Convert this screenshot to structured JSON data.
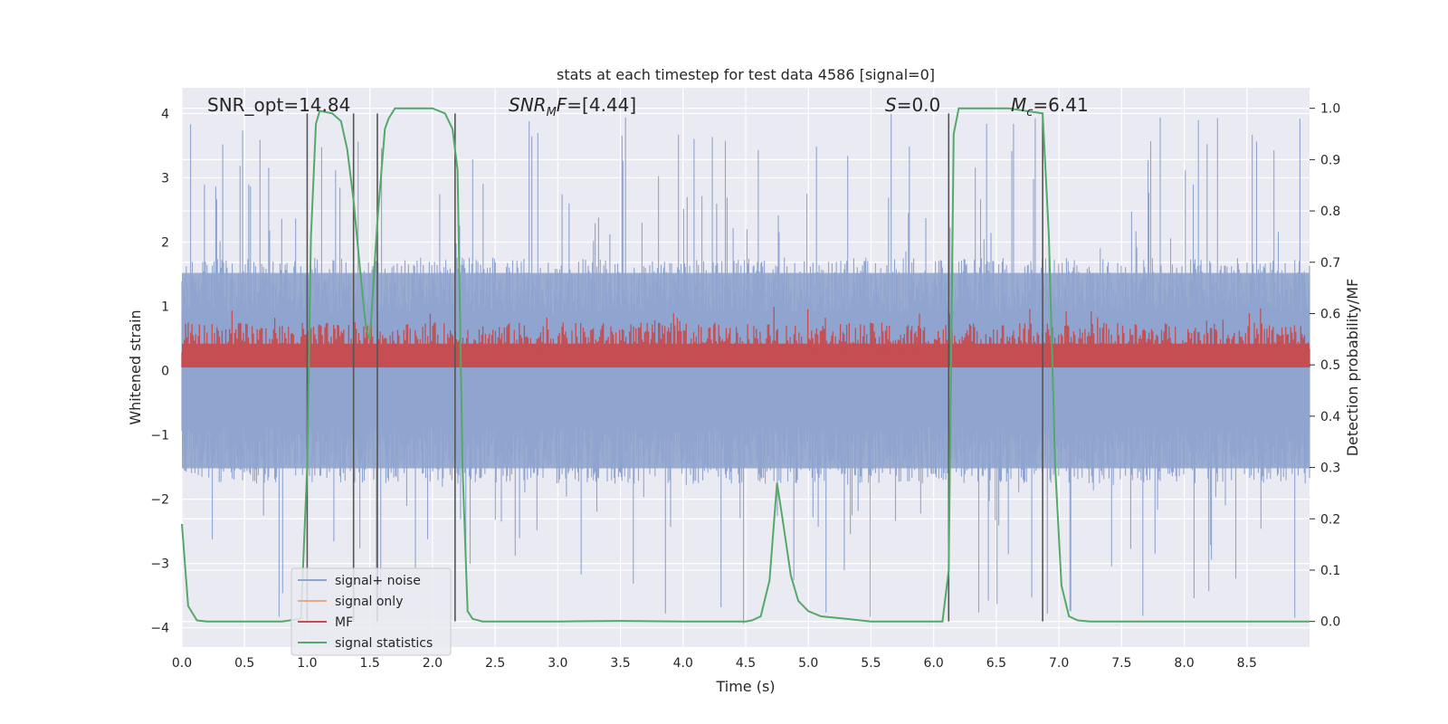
{
  "chart_data": {
    "type": "line",
    "title": "stats at each timestep for test data 4586 [signal=0]",
    "xlabel": "Time (s)",
    "ylabel": "Whitened strain",
    "ylabel_right": "Detection probability/MF",
    "xlim": [
      0,
      9.0
    ],
    "ylim": [
      -4.3,
      4.4
    ],
    "ylim_right": [
      -0.05,
      1.04
    ],
    "x_ticks": [
      "0.0",
      "0.5",
      "1.0",
      "1.5",
      "2.0",
      "2.5",
      "3.0",
      "3.5",
      "4.0",
      "4.5",
      "5.0",
      "5.5",
      "6.0",
      "6.5",
      "7.0",
      "7.5",
      "8.0",
      "8.5"
    ],
    "y_ticks": [
      "4",
      "3",
      "2",
      "1",
      "0",
      "−1",
      "−2",
      "−3",
      "−4"
    ],
    "y_ticks_right": [
      "1.0",
      "0.9",
      "0.8",
      "0.7",
      "0.6",
      "0.5",
      "0.4",
      "0.3",
      "0.2",
      "0.1",
      "0.0"
    ],
    "grid": true,
    "annotations": {
      "snr_opt": "SNR_opt=14.84",
      "snr_mf_base": "SNR",
      "snr_mf_sub": "M",
      "snr_mf_rest": "F=[4.44]",
      "s_base": "S",
      "s_rest": "=0.0",
      "mc_base": "M",
      "mc_sub": "c",
      "mc_rest": "=6.41"
    },
    "legend": {
      "position": "lower-left",
      "entries": [
        {
          "label": "signal+ noise",
          "color": "#8fa4cf"
        },
        {
          "label": "signal only",
          "color": "#e8a88a"
        },
        {
          "label": "MF",
          "color": "#c44e52"
        },
        {
          "label": "signal statistics",
          "color": "#55a868"
        }
      ]
    },
    "noise_envelope": {
      "upper_typical": 1.6,
      "lower_typical": -1.6,
      "upper_peak": 4.0,
      "lower_peak": -4.0
    },
    "mf_band": {
      "low": 0.05,
      "high": 0.75,
      "peak": 1.0
    },
    "vertical_lines_x": [
      1.0,
      1.37,
      1.56,
      2.18,
      6.12,
      6.87
    ],
    "vertical_lines_yrange": [
      -3.9,
      4.0
    ],
    "series": [
      {
        "name": "signal statistics",
        "axis": "right",
        "color": "#55a868",
        "x": [
          0.0,
          0.05,
          0.12,
          0.2,
          0.5,
          0.8,
          0.95,
          1.0,
          1.03,
          1.07,
          1.1,
          1.2,
          1.27,
          1.32,
          1.37,
          1.42,
          1.47,
          1.5,
          1.56,
          1.62,
          1.65,
          1.7,
          2.0,
          2.1,
          2.16,
          2.2,
          2.24,
          2.28,
          2.32,
          2.4,
          3.0,
          3.5,
          4.0,
          4.5,
          4.55,
          4.62,
          4.69,
          4.75,
          4.8,
          4.86,
          4.92,
          5.0,
          5.1,
          5.3,
          5.5,
          6.0,
          6.07,
          6.12,
          6.16,
          6.2,
          6.3,
          6.6,
          6.87,
          6.92,
          6.97,
          7.02,
          7.08,
          7.15,
          7.25,
          8.0,
          9.0
        ],
        "values": [
          0.19,
          0.03,
          0.002,
          0.0,
          0.0,
          0.0,
          0.005,
          0.3,
          0.75,
          0.97,
          0.995,
          0.99,
          0.975,
          0.92,
          0.82,
          0.69,
          0.57,
          0.55,
          0.78,
          0.96,
          0.98,
          1.0,
          1.0,
          0.99,
          0.96,
          0.88,
          0.3,
          0.02,
          0.005,
          0.0,
          0.0,
          0.001,
          0.0,
          0.0,
          0.002,
          0.01,
          0.08,
          0.27,
          0.19,
          0.09,
          0.04,
          0.02,
          0.01,
          0.005,
          0.0,
          0.0,
          0.0,
          0.1,
          0.95,
          1.0,
          1.0,
          1.0,
          0.99,
          0.75,
          0.3,
          0.07,
          0.01,
          0.002,
          0.0,
          0.0,
          0.0
        ]
      }
    ]
  }
}
